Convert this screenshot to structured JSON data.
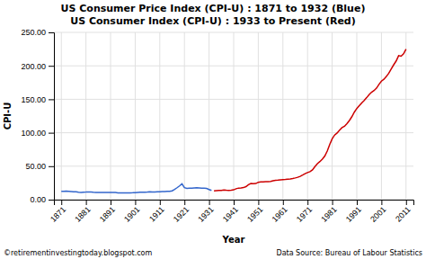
{
  "chart_data": {
    "type": "line",
    "title": "US Consumer Price Index (CPI-U) : 1871 to 1932 (Blue)",
    "subtitle": "US Consumer Index (CPI-U) : 1933 to Present (Red)",
    "x_label": "Year",
    "y_label": "CPI-U",
    "annotations": [
      "©retirementinvestingtoday.blogspot.com",
      "Data Source: Bureau of Labour Statistics"
    ],
    "xlim": [
      1868,
      2014
    ],
    "xticks": [
      1871,
      1881,
      1891,
      1901,
      1911,
      1921,
      1931,
      1941,
      1951,
      1961,
      1971,
      1981,
      1991,
      2001,
      2011
    ],
    "ylim": [
      0,
      250
    ],
    "yticks": [
      {
        "value": 0,
        "label": "0.00"
      },
      {
        "value": 50,
        "label": "50.00"
      },
      {
        "value": 100,
        "label": "100.00"
      },
      {
        "value": 150,
        "label": "150.00"
      },
      {
        "value": 200,
        "label": "200.00"
      },
      {
        "value": 250,
        "label": "250.00"
      }
    ],
    "grid": true,
    "series": [
      {
        "color": "#3366CC",
        "x": [
          1871,
          1872,
          1873,
          1874,
          1875,
          1876,
          1877,
          1878,
          1879,
          1880,
          1881,
          1882,
          1883,
          1884,
          1885,
          1886,
          1887,
          1888,
          1889,
          1890,
          1891,
          1892,
          1893,
          1894,
          1895,
          1896,
          1897,
          1898,
          1899,
          1900,
          1901,
          1902,
          1903,
          1904,
          1905,
          1906,
          1907,
          1908,
          1909,
          1910,
          1911,
          1912,
          1913,
          1914,
          1915,
          1916,
          1917,
          1918,
          1919,
          1920,
          1921,
          1922,
          1923,
          1924,
          1925,
          1926,
          1927,
          1928,
          1929,
          1930,
          1931,
          1932
        ],
        "values": [
          12.3,
          12.5,
          12.7,
          12.4,
          12.1,
          11.8,
          11.7,
          11.1,
          10.7,
          11.2,
          11.3,
          11.5,
          11.3,
          11.0,
          10.8,
          10.6,
          10.7,
          10.8,
          10.7,
          10.6,
          10.7,
          10.6,
          10.6,
          10.2,
          10.1,
          10.0,
          10.0,
          10.0,
          10.2,
          10.3,
          10.5,
          10.8,
          11.0,
          11.1,
          11.1,
          11.3,
          11.6,
          11.4,
          11.4,
          11.8,
          11.8,
          12.0,
          12.1,
          12.3,
          12.3,
          13.2,
          15.4,
          17.8,
          20.5,
          23.7,
          17.9,
          16.8,
          17.1,
          17.1,
          17.5,
          17.7,
          17.4,
          17.1,
          17.1,
          16.7,
          15.2,
          13.7
        ]
      },
      {
        "color": "#CC0000",
        "x": [
          1933,
          1934,
          1935,
          1936,
          1937,
          1938,
          1939,
          1940,
          1941,
          1942,
          1943,
          1944,
          1945,
          1946,
          1947,
          1948,
          1949,
          1950,
          1951,
          1952,
          1953,
          1954,
          1955,
          1956,
          1957,
          1958,
          1959,
          1960,
          1961,
          1962,
          1963,
          1964,
          1965,
          1966,
          1967,
          1968,
          1969,
          1970,
          1971,
          1972,
          1973,
          1974,
          1975,
          1976,
          1977,
          1978,
          1979,
          1980,
          1981,
          1982,
          1983,
          1984,
          1985,
          1986,
          1987,
          1988,
          1989,
          1990,
          1991,
          1992,
          1993,
          1994,
          1995,
          1996,
          1997,
          1998,
          1999,
          2000,
          2001,
          2002,
          2003,
          2004,
          2005,
          2006,
          2007,
          2008,
          2009,
          2010,
          2011
        ],
        "values": [
          13.0,
          13.4,
          13.7,
          13.9,
          14.4,
          14.1,
          13.9,
          14.0,
          14.7,
          16.3,
          17.3,
          17.6,
          18.0,
          19.5,
          22.3,
          24.1,
          23.8,
          24.1,
          26.0,
          26.5,
          26.7,
          26.9,
          26.8,
          27.2,
          28.1,
          28.9,
          29.1,
          29.6,
          29.9,
          30.2,
          30.6,
          31.0,
          31.5,
          32.4,
          33.4,
          34.8,
          36.7,
          38.8,
          40.5,
          41.8,
          44.4,
          49.3,
          53.8,
          56.9,
          60.6,
          65.2,
          72.6,
          82.4,
          90.9,
          96.5,
          99.6,
          103.9,
          107.6,
          109.6,
          113.6,
          118.3,
          124.0,
          130.7,
          136.2,
          140.3,
          144.5,
          148.2,
          152.4,
          156.9,
          160.5,
          163.0,
          166.6,
          172.2,
          177.1,
          179.9,
          184.0,
          188.9,
          195.3,
          201.6,
          207.3,
          215.3,
          214.5,
          218.1,
          224.9
        ]
      }
    ]
  }
}
